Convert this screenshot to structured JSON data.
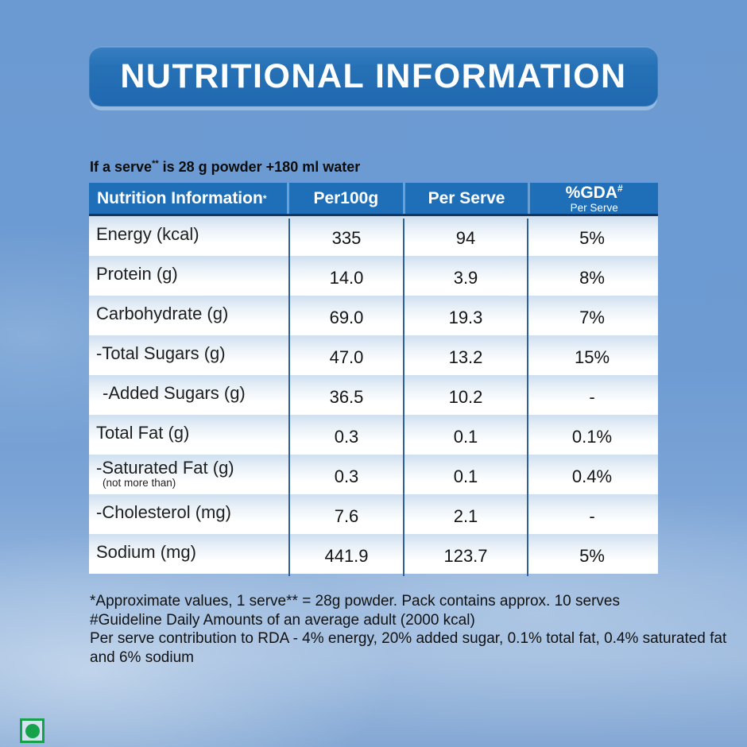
{
  "banner": {
    "label": "NUTRITIONAL INFORMATION"
  },
  "serve_line": {
    "prefix": "If a serve",
    "sup": "**",
    "suffix": " is 28 g powder +180 ml water"
  },
  "table": {
    "header": {
      "col1_text": "Nutrition Information",
      "col1_sup": "*",
      "col2": "Per100g",
      "col3": "Per Serve",
      "col4_text": "%GDA",
      "col4_sup": "#",
      "col4_sub": "Per Serve"
    },
    "rows": [
      {
        "label": "Energy (kcal)",
        "sublabel": "",
        "indent": false,
        "per100g": "335",
        "per_serve": "94",
        "gda": "5%"
      },
      {
        "label": "Protein (g)",
        "sublabel": "",
        "indent": false,
        "per100g": "14.0",
        "per_serve": "3.9",
        "gda": "8%"
      },
      {
        "label": "Carbohydrate (g)",
        "sublabel": "",
        "indent": false,
        "per100g": "69.0",
        "per_serve": "19.3",
        "gda": "7%"
      },
      {
        "label": "-Total Sugars (g)",
        "sublabel": "",
        "indent": false,
        "per100g": "47.0",
        "per_serve": "13.2",
        "gda": "15%"
      },
      {
        "label": "-Added Sugars (g)",
        "sublabel": "",
        "indent": true,
        "per100g": "36.5",
        "per_serve": "10.2",
        "gda": "-"
      },
      {
        "label": "Total Fat (g)",
        "sublabel": "",
        "indent": false,
        "per100g": "0.3",
        "per_serve": "0.1",
        "gda": "0.1%"
      },
      {
        "label": "-Saturated Fat (g)",
        "sublabel": "(not more than)",
        "indent": false,
        "per100g": "0.3",
        "per_serve": "0.1",
        "gda": "0.4%"
      },
      {
        "label": "-Cholesterol (mg)",
        "sublabel": "",
        "indent": false,
        "per100g": "7.6",
        "per_serve": "2.1",
        "gda": "-"
      },
      {
        "label": "Sodium (mg)",
        "sublabel": "",
        "indent": false,
        "per100g": "441.9",
        "per_serve": "123.7",
        "gda": "5%"
      }
    ]
  },
  "footnotes": [
    "*Approximate values, 1 serve** = 28g powder. Pack contains approx. 10 serves",
    "#Guideline Daily Amounts of an average adult (2000 kcal)",
    "Per serve contribution to RDA - 4% energy, 20% added sugar, 0.1% total fat, 0.4% saturated fat",
    "and 6% sodium"
  ],
  "veg_mark": {
    "name": "vegetarian-mark"
  },
  "colors": {
    "page_bg": "#6d9bd2",
    "banner_bg": "#2671b6",
    "header_bg": "#1f6fb8",
    "header_divider": "#68a0d6",
    "header_underline": "#16365e",
    "body_divider": "#2e5f96",
    "row_top_tint": "#cfdfef",
    "veg_green": "#16a24b"
  }
}
